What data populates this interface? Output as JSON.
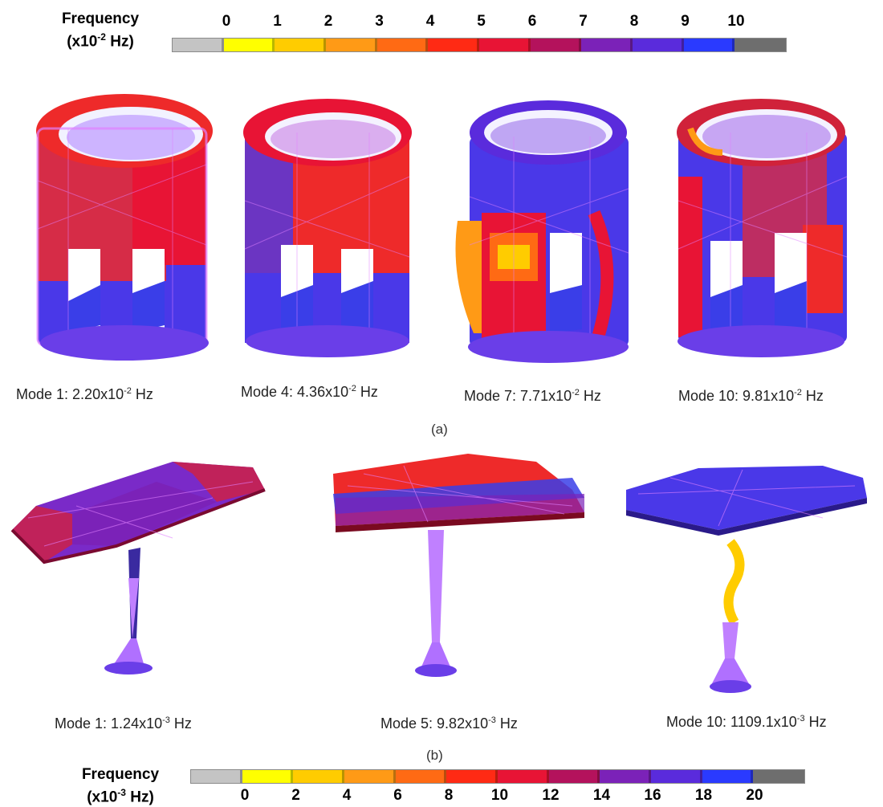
{
  "colors": {
    "scale": [
      "#c4c4c4",
      "#ffff00",
      "#ffcc00",
      "#ff9a16",
      "#ff6a14",
      "#ff2a14",
      "#e81435",
      "#b4125c",
      "#7b22b8",
      "#5a2bdc",
      "#2a3aff",
      "#6e6e6e"
    ],
    "red": "#ee2a2a",
    "blue": "#4a38e8",
    "mesh": "#e080ff"
  },
  "top_scale": {
    "title_line1": "Frequency",
    "title_prefix": "(x10",
    "title_exp": "-2",
    "title_suffix": " Hz)",
    "ticks": [
      "0",
      "1",
      "2",
      "3",
      "4",
      "5",
      "6",
      "7",
      "8",
      "9",
      "10"
    ]
  },
  "panel_a": {
    "label": "(a)",
    "modes": [
      {
        "prefix": "Mode 1: 2.20x10",
        "exp": "-2",
        "suffix": " Hz"
      },
      {
        "prefix": "Mode 4: 4.36x10",
        "exp": "-2",
        "suffix": " Hz"
      },
      {
        "prefix": "Mode 7: 7.71x10",
        "exp": "-2",
        "suffix": " Hz"
      },
      {
        "prefix": "Mode 10: 9.81x10",
        "exp": "-2",
        "suffix": " Hz"
      }
    ]
  },
  "panel_b": {
    "label": "(b)",
    "modes": [
      {
        "prefix": "Mode 1: 1.24x10",
        "exp": "-3",
        "suffix": " Hz"
      },
      {
        "prefix": "Mode 5: 9.82x10",
        "exp": "-3",
        "suffix": " Hz"
      },
      {
        "prefix": "Mode 10: 1109.1x10",
        "exp": "-3",
        "suffix": " Hz"
      }
    ]
  },
  "bottom_scale": {
    "title_line1": "Frequency",
    "title_prefix": "(x10",
    "title_exp": "-3",
    "title_suffix": " Hz)",
    "ticks": [
      "0",
      "2",
      "4",
      "6",
      "8",
      "10",
      "12",
      "14",
      "16",
      "18",
      "20"
    ]
  }
}
